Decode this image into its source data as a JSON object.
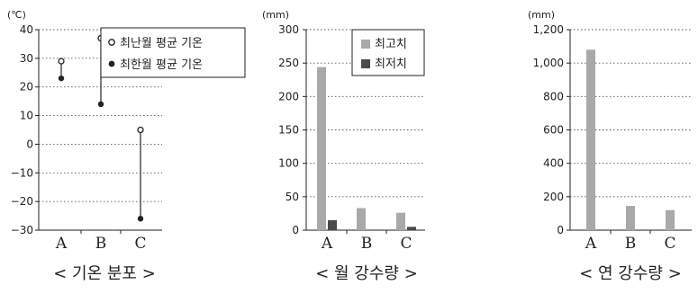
{
  "chart_data": [
    {
      "type": "dumbbell",
      "caption": "< 기온 분포 >",
      "unit": "(℃)",
      "categories": [
        "A",
        "B",
        "C"
      ],
      "y_ticks": [
        "40",
        "30",
        "20",
        "10",
        "0",
        "−10",
        "−20",
        "−30"
      ],
      "ylim": [
        -30,
        40
      ],
      "grid": "dotted horizontal",
      "legend_position": "top-right",
      "series": [
        {
          "name": "최난월 평균 기온",
          "marker": "open-circle",
          "values": [
            29,
            37,
            5
          ]
        },
        {
          "name": "최한월 평균 기온",
          "marker": "filled-circle",
          "values": [
            23,
            14,
            -26
          ]
        }
      ]
    },
    {
      "type": "bar",
      "caption": "< 월 강수량 >",
      "unit": "(mm)",
      "categories": [
        "A",
        "B",
        "C"
      ],
      "y_ticks": [
        "300",
        "250",
        "200",
        "150",
        "100",
        "50",
        "0"
      ],
      "ylim": [
        0,
        300
      ],
      "grid": "dotted horizontal",
      "legend_position": "top-right",
      "series": [
        {
          "name": "최고치",
          "color": "#a9a9a9",
          "values": [
            244,
            33,
            26
          ]
        },
        {
          "name": "최저치",
          "color": "#4a4a4a",
          "values": [
            15,
            0,
            5
          ]
        }
      ]
    },
    {
      "type": "bar",
      "caption": "< 연 강수량 >",
      "unit": "(mm)",
      "categories": [
        "A",
        "B",
        "C"
      ],
      "y_ticks": [
        "1,200",
        "1,000",
        "800",
        "600",
        "400",
        "200",
        "0"
      ],
      "ylim": [
        0,
        1200
      ],
      "grid": "dotted horizontal",
      "series": [
        {
          "name": "",
          "color": "#a9a9a9",
          "values": [
            1080,
            145,
            120
          ]
        }
      ]
    }
  ]
}
